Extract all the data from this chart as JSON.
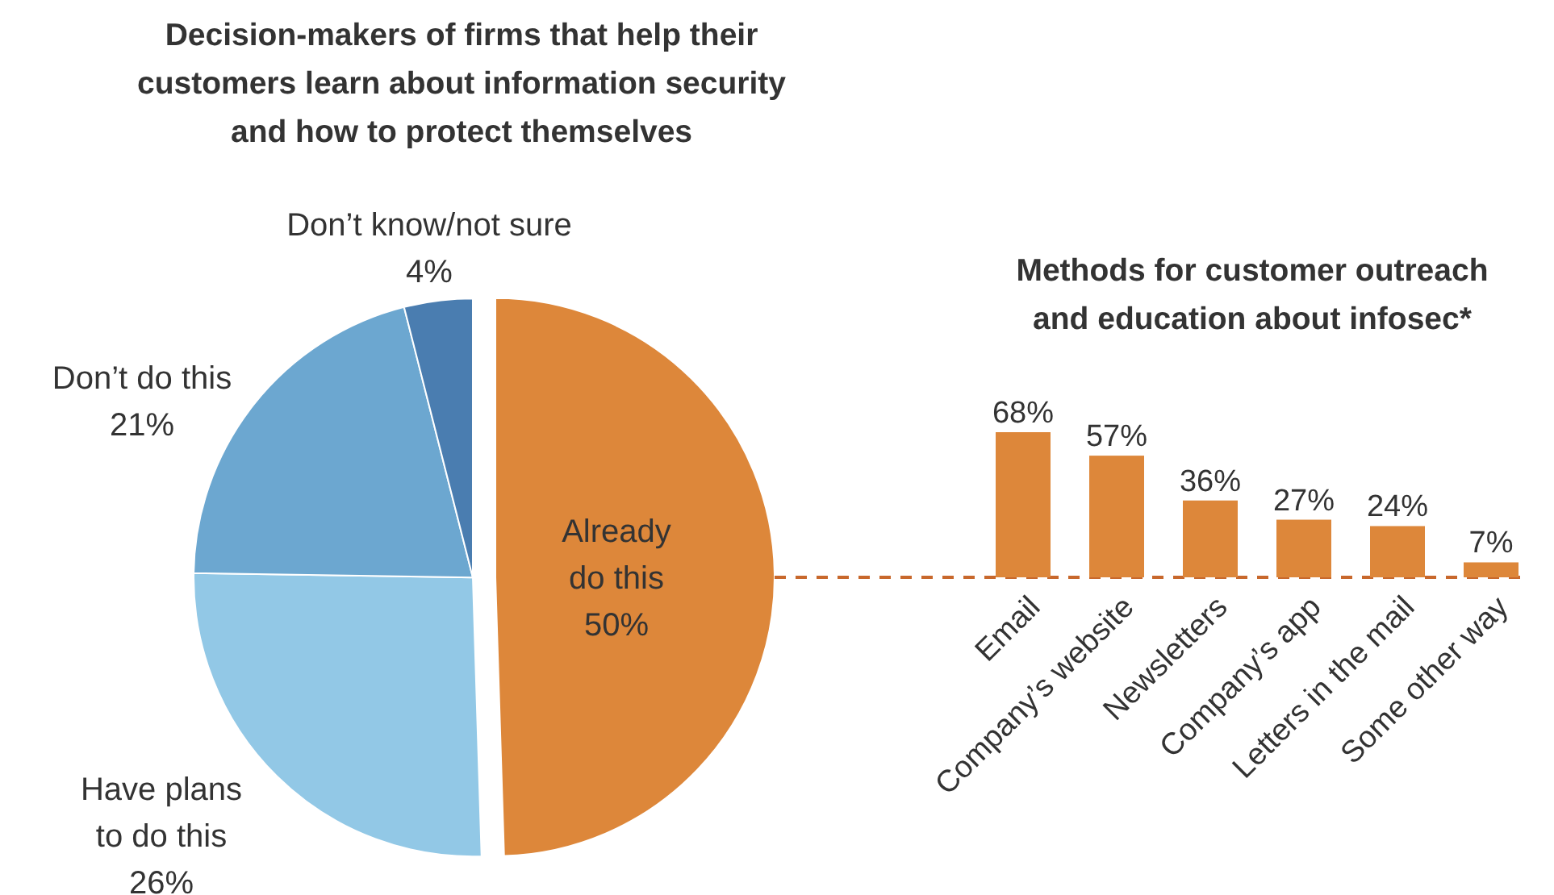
{
  "chart_data": [
    {
      "type": "pie",
      "title": "Decision-makers of firms that help their customers learn about information security and how to protect themselves",
      "categories": [
        "Already do this",
        "Have plans to do this",
        "Don’t do this",
        "Don’t know/not sure"
      ],
      "values": [
        50,
        26,
        21,
        4
      ],
      "colors": [
        "#dd873a",
        "#92c8e6",
        "#6ca7d0",
        "#4a7db0"
      ],
      "value_labels": [
        "50%",
        "26%",
        "21%",
        "4%"
      ]
    },
    {
      "type": "bar",
      "title": "Methods for customer outreach and education about infosec*",
      "categories": [
        "Email",
        "Company’s website",
        "Newsletters",
        "Company’s app",
        "Letters in the mail",
        "Some other way"
      ],
      "values": [
        68,
        57,
        36,
        27,
        24,
        7
      ],
      "color": "#dd873a",
      "value_labels": [
        "68%",
        "57%",
        "36%",
        "27%",
        "24%",
        "7%"
      ]
    }
  ]
}
